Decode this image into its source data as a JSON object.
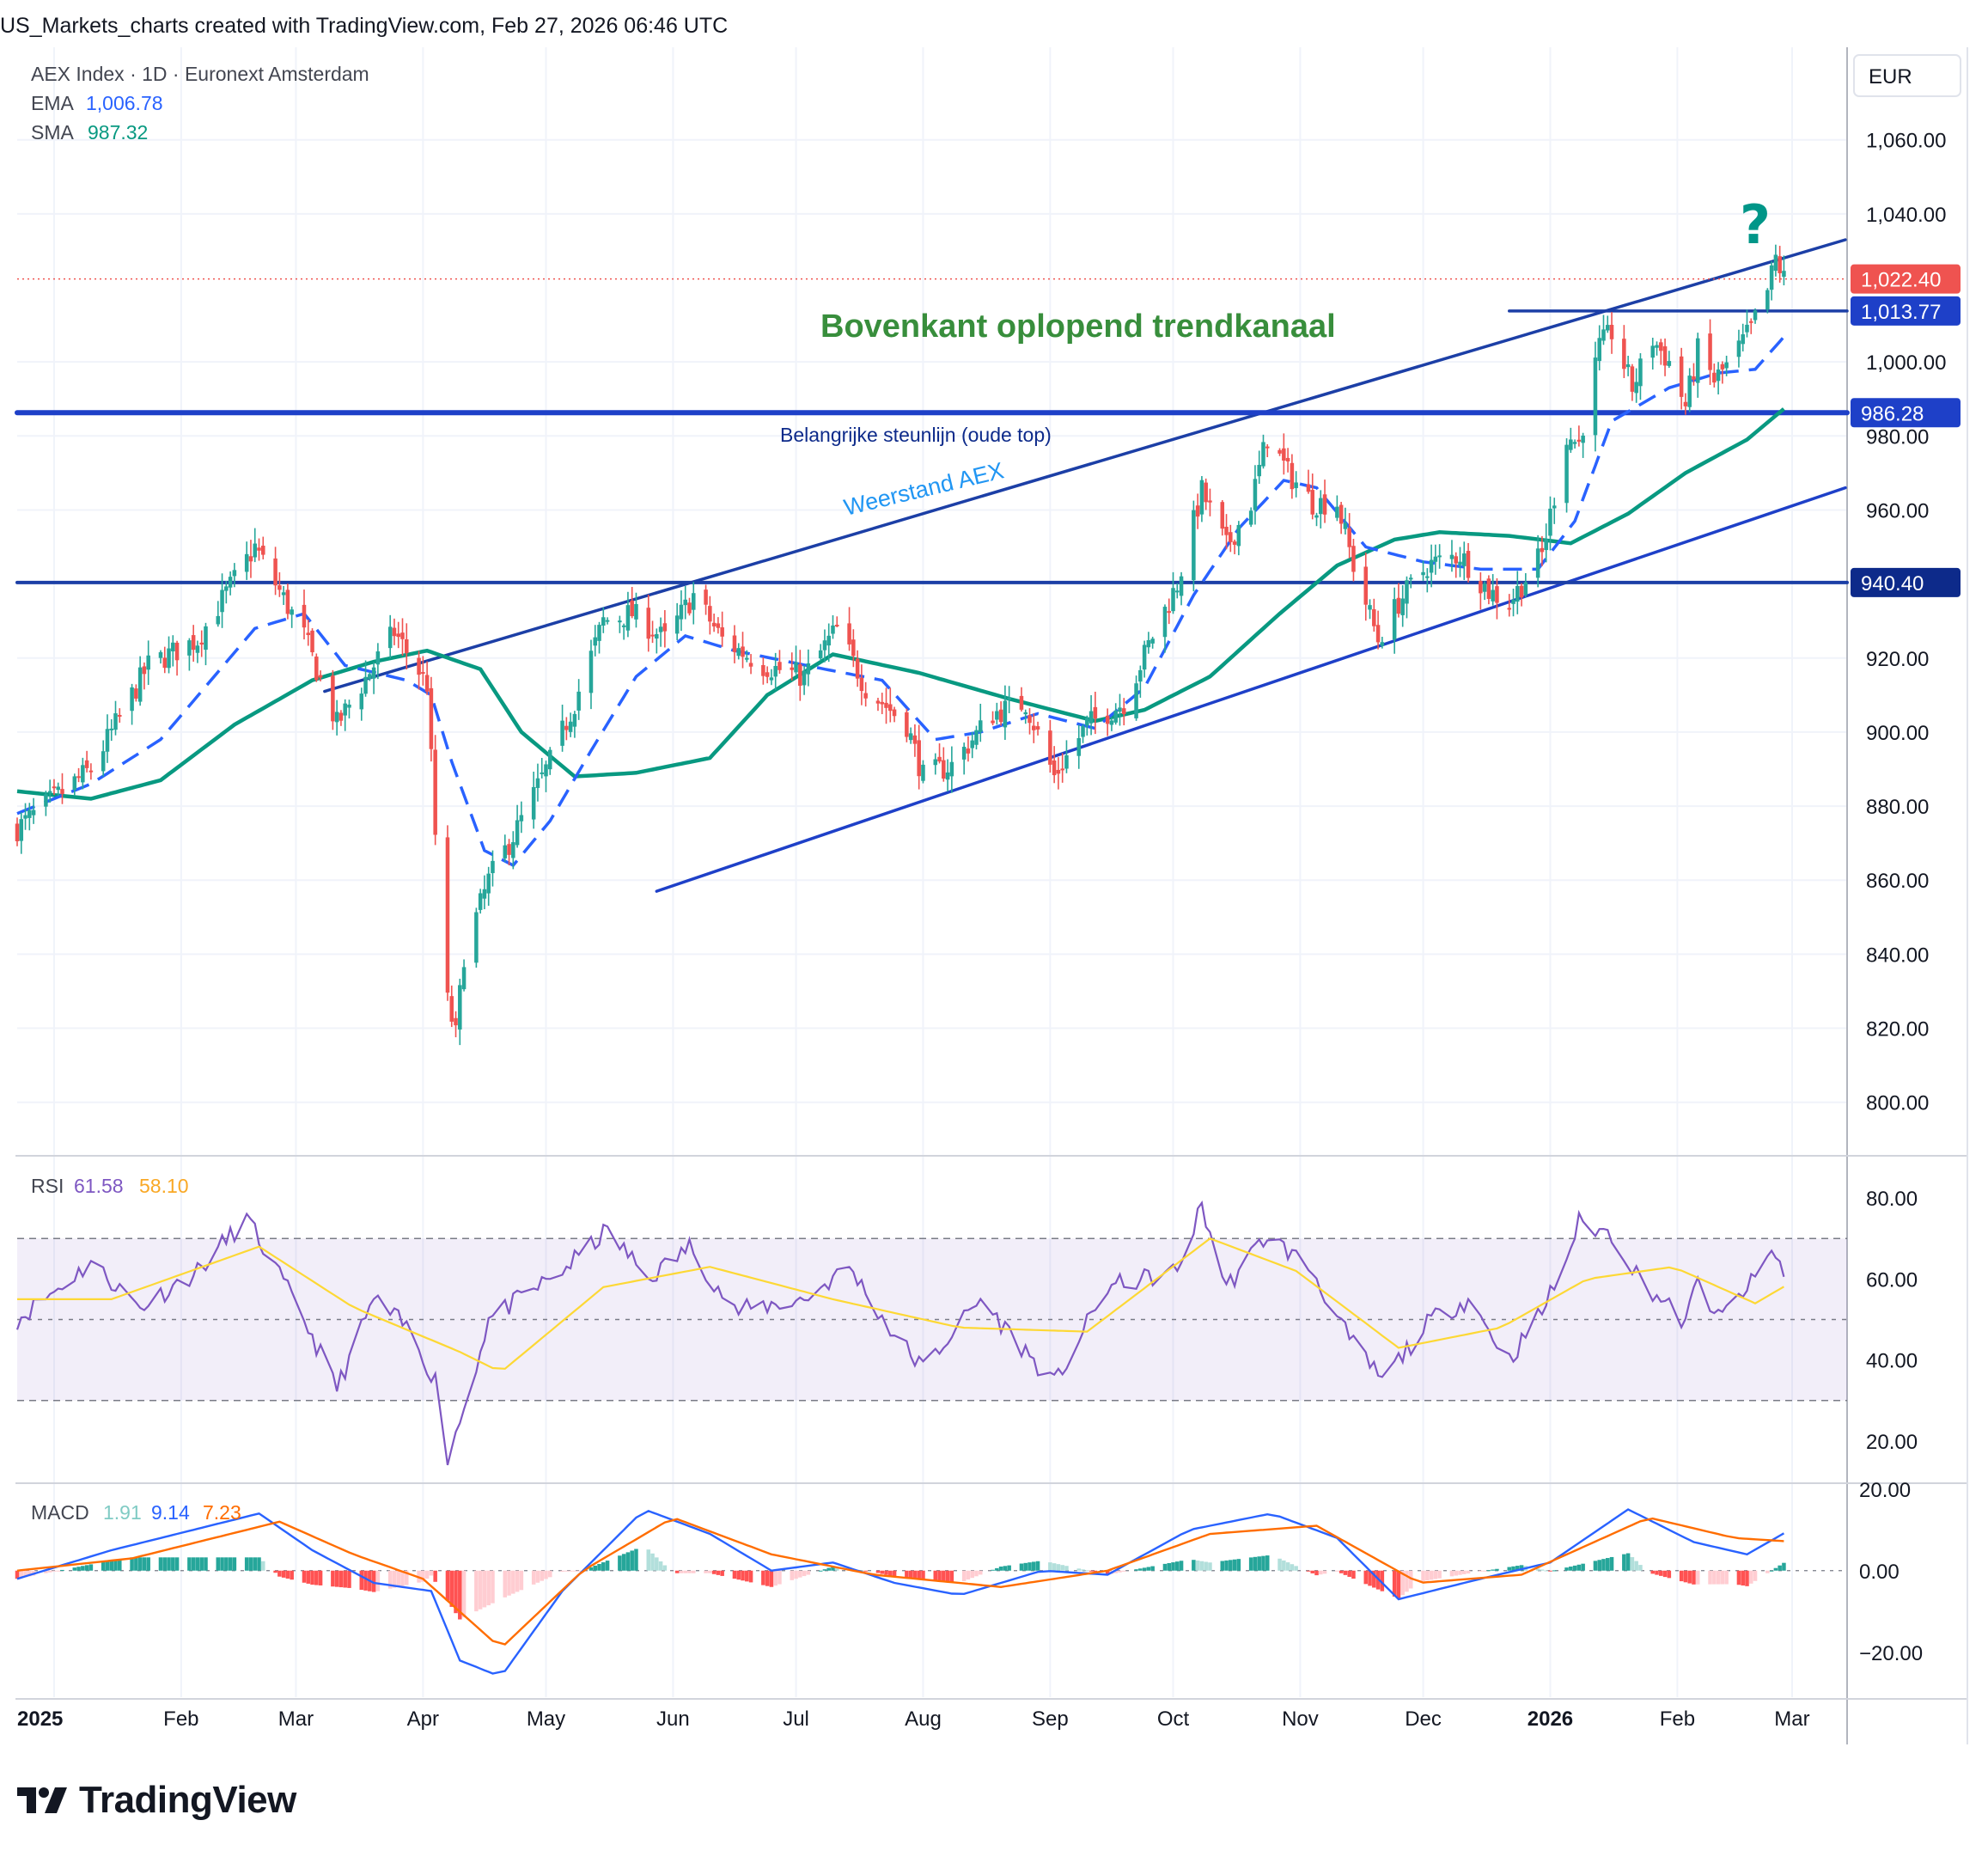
{
  "header": {
    "caption": "US_Markets_charts created with TradingView.com, Feb 27, 2026 06:46 UTC"
  },
  "brand": {
    "name": "TradingView"
  },
  "colors": {
    "up": "#26a69a",
    "down": "#ef5350",
    "ema": "#2962ff",
    "sma": "#089981",
    "channel": "#1c3fa6",
    "steun": "#1e40c8",
    "annotation": "#388e3c",
    "rsi": "#7e57c2",
    "rsi_ma": "#fdd835",
    "macd": "#2962ff",
    "signal": "#ff6d00"
  },
  "chart_data": [
    {
      "type": "candlestick",
      "title": "AEX Index · 1D · Euronext Amsterdam",
      "currency": "EUR",
      "x_ticks": [
        "2025",
        "Feb",
        "Mar",
        "Apr",
        "May",
        "Jun",
        "Jul",
        "Aug",
        "Sep",
        "Oct",
        "Nov",
        "Dec",
        "2026",
        "Feb",
        "Mar"
      ],
      "y_ticks": [
        "1,060.00",
        "1,040.00",
        "1,000.00",
        "980.00",
        "960.00",
        "920.00",
        "900.00",
        "880.00",
        "860.00",
        "840.00",
        "820.00",
        "800.00"
      ],
      "ylim": [
        786,
        1085
      ],
      "indicators": [
        {
          "name": "EMA",
          "value": "1,006.78"
        },
        {
          "name": "SMA",
          "value": "987.32"
        }
      ],
      "price_tags": [
        {
          "label": "1,022.40",
          "value": 1022.4,
          "kind": "last"
        },
        {
          "label": "1,013.77",
          "value": 1013.77,
          "kind": "level"
        },
        {
          "label": "986.28",
          "value": 986.28,
          "kind": "level"
        },
        {
          "label": "940.40",
          "value": 940.4,
          "kind": "level"
        }
      ],
      "annotations": [
        {
          "text": "Bovenkant oplopend trendkanaal"
        },
        {
          "text": "Belangrijke steunlijn (oude top)"
        },
        {
          "text": "Weerstand AEX"
        },
        {
          "text": "?"
        }
      ],
      "lines": [
        {
          "name": "upper-channel",
          "from": [
            "2025-03-08",
            911
          ],
          "to": [
            "2026-03-14",
            1033
          ]
        },
        {
          "name": "lower-channel",
          "from": [
            "2025-05-28",
            857
          ],
          "to": [
            "2026-03-14",
            966
          ]
        },
        {
          "name": "support-old-top",
          "value": 986.28
        },
        {
          "name": "level-940",
          "value": 940.4
        },
        {
          "name": "level-1013",
          "value": 1013.77,
          "from": "2025-12-22"
        }
      ],
      "anchors": [
        [
          "2024-12-23",
          874
        ],
        [
          "2025-01-10",
          890
        ],
        [
          "2025-01-24",
          918
        ],
        [
          "2025-02-05",
          925
        ],
        [
          "2025-02-19",
          950
        ],
        [
          "2025-03-03",
          926
        ],
        [
          "2025-03-11",
          902
        ],
        [
          "2025-03-25",
          927
        ],
        [
          "2025-04-02",
          913
        ],
        [
          "2025-04-04",
          872
        ],
        [
          "2025-04-07",
          827
        ],
        [
          "2025-04-09",
          818
        ],
        [
          "2025-04-11",
          840
        ],
        [
          "2025-04-17",
          860
        ],
        [
          "2025-04-24",
          874
        ],
        [
          "2025-05-02",
          892
        ],
        [
          "2025-05-08",
          908
        ],
        [
          "2025-05-15",
          930
        ],
        [
          "2025-05-22",
          932
        ],
        [
          "2025-05-30",
          925
        ],
        [
          "2025-06-06",
          937
        ],
        [
          "2025-06-13",
          925
        ],
        [
          "2025-06-23",
          918
        ],
        [
          "2025-07-03",
          915
        ],
        [
          "2025-07-11",
          928
        ],
        [
          "2025-07-18",
          912
        ],
        [
          "2025-07-28",
          902
        ],
        [
          "2025-08-01",
          888
        ],
        [
          "2025-08-08",
          891
        ],
        [
          "2025-08-18",
          905
        ],
        [
          "2025-08-26",
          908
        ],
        [
          "2025-09-02",
          888
        ],
        [
          "2025-09-10",
          902
        ],
        [
          "2025-09-19",
          908
        ],
        [
          "2025-09-26",
          926
        ],
        [
          "2025-10-02",
          940
        ],
        [
          "2025-10-08",
          965
        ],
        [
          "2025-10-14",
          950
        ],
        [
          "2025-10-20",
          962
        ],
        [
          "2025-10-24",
          980
        ],
        [
          "2025-10-29",
          970
        ],
        [
          "2025-11-04",
          962
        ],
        [
          "2025-11-10",
          962
        ],
        [
          "2025-11-14",
          945
        ],
        [
          "2025-11-20",
          925
        ],
        [
          "2025-11-25",
          935
        ],
        [
          "2025-12-02",
          945
        ],
        [
          "2025-12-10",
          948
        ],
        [
          "2025-12-17",
          938
        ],
        [
          "2025-12-22",
          935
        ],
        [
          "2025-12-30",
          948
        ],
        [
          "2026-01-05",
          980
        ],
        [
          "2026-01-08",
          978
        ],
        [
          "2026-01-13",
          1004
        ],
        [
          "2026-01-16",
          1008
        ],
        [
          "2026-01-21",
          993
        ],
        [
          "2026-01-26",
          1006
        ],
        [
          "2026-01-30",
          1000
        ],
        [
          "2026-02-03",
          988
        ],
        [
          "2026-02-06",
          1003
        ],
        [
          "2026-02-10",
          995
        ],
        [
          "2026-02-14",
          1000
        ],
        [
          "2026-02-19",
          1009
        ],
        [
          "2026-02-23",
          1019
        ],
        [
          "2026-02-25",
          1028
        ],
        [
          "2026-02-27",
          1022.4
        ]
      ],
      "ema_anchors": [
        [
          "2024-12-23",
          878
        ],
        [
          "2025-01-10",
          886
        ],
        [
          "2025-01-27",
          898
        ],
        [
          "2025-02-19",
          928
        ],
        [
          "2025-03-03",
          932
        ],
        [
          "2025-03-13",
          918
        ],
        [
          "2025-03-28",
          914
        ],
        [
          "2025-04-03",
          910
        ],
        [
          "2025-04-08",
          892
        ],
        [
          "2025-04-16",
          868
        ],
        [
          "2025-04-23",
          864
        ],
        [
          "2025-05-02",
          876
        ],
        [
          "2025-05-12",
          895
        ],
        [
          "2025-05-23",
          915
        ],
        [
          "2025-06-04",
          926
        ],
        [
          "2025-06-16",
          922
        ],
        [
          "2025-07-08",
          917
        ],
        [
          "2025-07-22",
          914
        ],
        [
          "2025-08-04",
          898
        ],
        [
          "2025-08-15",
          900
        ],
        [
          "2025-08-29",
          905
        ],
        [
          "2025-09-12",
          901
        ],
        [
          "2025-09-24",
          912
        ],
        [
          "2025-10-06",
          937
        ],
        [
          "2025-10-17",
          955
        ],
        [
          "2025-10-28",
          968
        ],
        [
          "2025-11-05",
          966
        ],
        [
          "2025-11-17",
          950
        ],
        [
          "2025-12-01",
          946
        ],
        [
          "2025-12-15",
          944
        ],
        [
          "2025-12-29",
          944
        ],
        [
          "2026-01-07",
          957
        ],
        [
          "2026-01-16",
          984
        ],
        [
          "2026-01-30",
          993
        ],
        [
          "2026-02-11",
          997
        ],
        [
          "2026-02-20",
          998
        ],
        [
          "2026-02-27",
          1006.78
        ]
      ],
      "sma_anchors": [
        [
          "2024-12-23",
          884
        ],
        [
          "2025-01-10",
          882
        ],
        [
          "2025-01-27",
          887
        ],
        [
          "2025-02-14",
          902
        ],
        [
          "2025-03-05",
          914
        ],
        [
          "2025-03-20",
          919
        ],
        [
          "2025-04-02",
          922
        ],
        [
          "2025-04-15",
          917
        ],
        [
          "2025-04-25",
          900
        ],
        [
          "2025-05-08",
          888
        ],
        [
          "2025-05-23",
          889
        ],
        [
          "2025-06-10",
          893
        ],
        [
          "2025-06-24",
          910
        ],
        [
          "2025-07-10",
          921
        ],
        [
          "2025-07-31",
          916
        ],
        [
          "2025-08-22",
          909
        ],
        [
          "2025-09-12",
          903
        ],
        [
          "2025-09-24",
          906
        ],
        [
          "2025-10-10",
          915
        ],
        [
          "2025-10-27",
          932
        ],
        [
          "2025-11-10",
          945
        ],
        [
          "2025-11-24",
          952
        ],
        [
          "2025-12-05",
          954
        ],
        [
          "2025-12-22",
          953
        ],
        [
          "2026-01-06",
          951
        ],
        [
          "2026-01-20",
          959
        ],
        [
          "2026-02-03",
          970
        ],
        [
          "2026-02-18",
          979
        ],
        [
          "2026-02-27",
          987.32
        ]
      ]
    },
    {
      "type": "line",
      "name": "RSI",
      "values_shown": [
        "61.58",
        "58.10"
      ],
      "y_ticks": [
        "80.00",
        "60.00",
        "40.00",
        "20.00"
      ],
      "ylim": [
        10,
        90
      ],
      "bands": [
        70,
        50,
        30
      ],
      "anchors": [
        [
          "2024-12-23",
          50
        ],
        [
          "2025-01-10",
          64
        ],
        [
          "2025-01-22",
          53
        ],
        [
          "2025-02-05",
          62
        ],
        [
          "2025-02-17",
          75
        ],
        [
          "2025-03-03",
          50
        ],
        [
          "2025-03-11",
          33
        ],
        [
          "2025-03-20",
          55
        ],
        [
          "2025-03-28",
          48
        ],
        [
          "2025-04-04",
          35
        ],
        [
          "2025-04-07",
          16
        ],
        [
          "2025-04-11",
          28
        ],
        [
          "2025-04-17",
          50
        ],
        [
          "2025-05-05",
          62
        ],
        [
          "2025-05-16",
          72
        ],
        [
          "2025-05-26",
          60
        ],
        [
          "2025-06-05",
          68
        ],
        [
          "2025-06-16",
          52
        ],
        [
          "2025-07-03",
          55
        ],
        [
          "2025-07-14",
          63
        ],
        [
          "2025-07-25",
          46
        ],
        [
          "2025-08-01",
          38
        ],
        [
          "2025-08-15",
          55
        ],
        [
          "2025-09-02",
          34
        ],
        [
          "2025-09-15",
          58
        ],
        [
          "2025-10-02",
          62
        ],
        [
          "2025-10-08",
          78
        ],
        [
          "2025-10-14",
          58
        ],
        [
          "2025-10-24",
          71
        ],
        [
          "2025-11-04",
          62
        ],
        [
          "2025-11-13",
          45
        ],
        [
          "2025-11-21",
          35
        ],
        [
          "2025-12-03",
          50
        ],
        [
          "2025-12-12",
          55
        ],
        [
          "2025-12-22",
          40
        ],
        [
          "2025-12-30",
          52
        ],
        [
          "2026-01-05",
          65
        ],
        [
          "2026-01-08",
          74
        ],
        [
          "2026-01-16",
          71
        ],
        [
          "2026-01-23",
          60
        ],
        [
          "2026-02-03",
          49
        ],
        [
          "2026-02-06",
          60
        ],
        [
          "2026-02-11",
          50
        ],
        [
          "2026-02-20",
          60
        ],
        [
          "2026-02-24",
          67
        ],
        [
          "2026-02-27",
          61.58
        ]
      ],
      "ma_anchors": [
        [
          "2024-12-23",
          55
        ],
        [
          "2025-01-15",
          55
        ],
        [
          "2025-02-20",
          68
        ],
        [
          "2025-03-15",
          53
        ],
        [
          "2025-04-10",
          42
        ],
        [
          "2025-04-20",
          37
        ],
        [
          "2025-05-15",
          58
        ],
        [
          "2025-06-10",
          63
        ],
        [
          "2025-07-10",
          55
        ],
        [
          "2025-08-10",
          48
        ],
        [
          "2025-09-10",
          47
        ],
        [
          "2025-10-10",
          70
        ],
        [
          "2025-10-31",
          62
        ],
        [
          "2025-11-25",
          43
        ],
        [
          "2025-12-20",
          48
        ],
        [
          "2026-01-10",
          60
        ],
        [
          "2026-01-31",
          63
        ],
        [
          "2026-02-20",
          54
        ],
        [
          "2026-02-27",
          58.1
        ]
      ]
    },
    {
      "type": "bar+line",
      "name": "MACD",
      "values_shown": [
        "1.91",
        "9.14",
        "7.23"
      ],
      "y_ticks": [
        "20.00",
        "0.00",
        "−20.00"
      ],
      "ylim": [
        -31,
        21
      ],
      "macd_anchors": [
        [
          "2024-12-23",
          -2
        ],
        [
          "2025-01-15",
          5
        ],
        [
          "2025-02-20",
          14
        ],
        [
          "2025-03-05",
          5
        ],
        [
          "2025-03-20",
          -3
        ],
        [
          "2025-04-03",
          -5
        ],
        [
          "2025-04-10",
          -22
        ],
        [
          "2025-04-20",
          -26
        ],
        [
          "2025-05-05",
          -5
        ],
        [
          "2025-05-25",
          15
        ],
        [
          "2025-06-10",
          9
        ],
        [
          "2025-06-25",
          0
        ],
        [
          "2025-07-10",
          2
        ],
        [
          "2025-07-25",
          -3
        ],
        [
          "2025-08-10",
          -6
        ],
        [
          "2025-08-30",
          0
        ],
        [
          "2025-09-15",
          -1
        ],
        [
          "2025-10-05",
          10
        ],
        [
          "2025-10-25",
          14
        ],
        [
          "2025-11-10",
          8
        ],
        [
          "2025-11-25",
          -7
        ],
        [
          "2025-12-15",
          -2
        ],
        [
          "2026-01-01",
          2
        ],
        [
          "2026-01-20",
          15
        ],
        [
          "2026-02-05",
          7
        ],
        [
          "2026-02-18",
          4
        ],
        [
          "2026-02-27",
          9.14
        ]
      ],
      "signal_anchors": [
        [
          "2024-12-23",
          0
        ],
        [
          "2025-01-20",
          3
        ],
        [
          "2025-02-25",
          12
        ],
        [
          "2025-03-15",
          4
        ],
        [
          "2025-04-01",
          -2
        ],
        [
          "2025-04-20",
          -19
        ],
        [
          "2025-05-10",
          0
        ],
        [
          "2025-06-01",
          13
        ],
        [
          "2025-06-25",
          4
        ],
        [
          "2025-07-20",
          -1
        ],
        [
          "2025-08-20",
          -4
        ],
        [
          "2025-09-15",
          0
        ],
        [
          "2025-10-10",
          9
        ],
        [
          "2025-11-05",
          11
        ],
        [
          "2025-11-30",
          -3
        ],
        [
          "2025-12-25",
          -1
        ],
        [
          "2026-01-25",
          13
        ],
        [
          "2026-02-15",
          8
        ],
        [
          "2026-02-27",
          7.23
        ]
      ]
    }
  ]
}
